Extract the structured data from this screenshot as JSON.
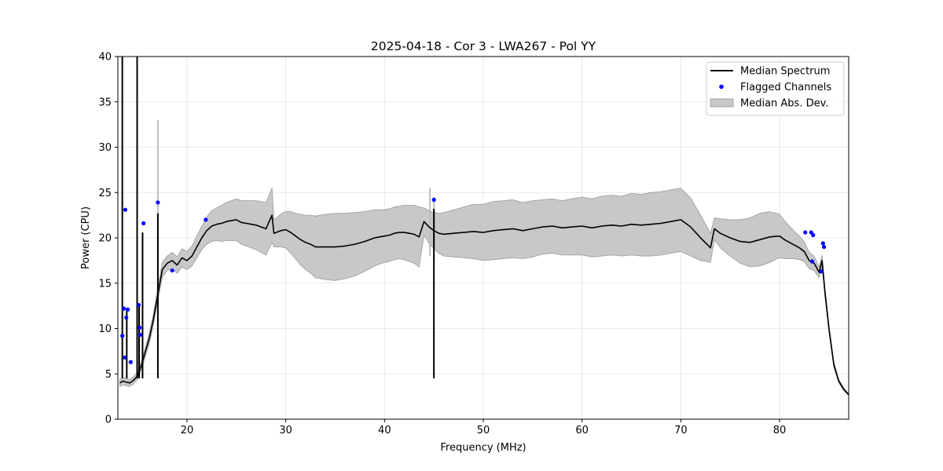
{
  "chart_data": {
    "type": "line",
    "title": "2025-04-18 - Cor 3 - LWA267 - Pol YY",
    "xlabel": "Frequency (MHz)",
    "ylabel": "Power (CPU)",
    "xlim": [
      13,
      87
    ],
    "ylim": [
      0,
      40
    ],
    "xticks": [
      20,
      30,
      40,
      50,
      60,
      70,
      80
    ],
    "yticks": [
      0,
      5,
      10,
      15,
      20,
      25,
      30,
      35,
      40
    ],
    "grid": true,
    "legend_position": "top-right",
    "legend": [
      {
        "label": "Median Spectrum",
        "kind": "line",
        "color": "#000000"
      },
      {
        "label": "Flagged Channels",
        "kind": "marker",
        "color": "#0000ff"
      },
      {
        "label": "Median Abs. Dev.",
        "kind": "band",
        "color": "#c8c8c8"
      }
    ],
    "median_spectrum": {
      "name": "Median Spectrum",
      "x": [
        13.2,
        13.5,
        13.8,
        14.2,
        14.6,
        15.0,
        15.4,
        15.8,
        16.2,
        16.6,
        17.0,
        17.5,
        18.0,
        18.5,
        19.0,
        19.5,
        20.0,
        20.5,
        21.0,
        21.5,
        22.0,
        22.5,
        23.0,
        23.5,
        24.0,
        24.5,
        25.0,
        25.5,
        26.0,
        26.5,
        27.0,
        27.5,
        28.0,
        28.6,
        28.8,
        29.5,
        30.0,
        30.5,
        31.0,
        31.5,
        32.0,
        32.5,
        33.0,
        34.0,
        35.0,
        36.0,
        37.0,
        38.0,
        38.5,
        39.0,
        39.5,
        40.0,
        40.5,
        41.0,
        41.5,
        42.0,
        42.5,
        43.0,
        43.5,
        44.0,
        44.5,
        45.0,
        45.5,
        46.0,
        47.0,
        48.0,
        49.0,
        50.0,
        51.0,
        52.0,
        53.0,
        54.0,
        55.0,
        56.0,
        57.0,
        58.0,
        59.0,
        60.0,
        61.0,
        62.0,
        63.0,
        64.0,
        65.0,
        66.0,
        67.0,
        68.0,
        69.0,
        70.0,
        71.0,
        72.0,
        73.0,
        73.4,
        74.0,
        75.0,
        76.0,
        77.0,
        78.0,
        79.0,
        80.0,
        80.5,
        81.0,
        81.5,
        82.0,
        82.5,
        83.0,
        83.5,
        84.0,
        84.3,
        84.6,
        85.0,
        85.5,
        86.0,
        86.5,
        87.0
      ],
      "y": [
        4.0,
        4.2,
        4.1,
        4.0,
        4.3,
        4.8,
        6.0,
        7.5,
        9.0,
        11.0,
        13.5,
        16.5,
        17.2,
        17.5,
        17.0,
        17.8,
        17.5,
        18.0,
        19.0,
        20.0,
        20.8,
        21.3,
        21.5,
        21.6,
        21.8,
        21.9,
        22.0,
        21.7,
        21.6,
        21.5,
        21.4,
        21.2,
        21.0,
        22.5,
        20.5,
        20.8,
        20.9,
        20.6,
        20.2,
        19.8,
        19.5,
        19.3,
        19.0,
        19.0,
        19.0,
        19.1,
        19.3,
        19.6,
        19.8,
        20.0,
        20.1,
        20.2,
        20.3,
        20.5,
        20.6,
        20.6,
        20.5,
        20.4,
        20.1,
        21.8,
        21.2,
        20.8,
        20.5,
        20.4,
        20.5,
        20.6,
        20.7,
        20.6,
        20.8,
        20.9,
        21.0,
        20.8,
        21.0,
        21.2,
        21.3,
        21.1,
        21.2,
        21.3,
        21.1,
        21.3,
        21.4,
        21.3,
        21.5,
        21.4,
        21.5,
        21.6,
        21.8,
        22.0,
        21.2,
        20.0,
        18.9,
        21.0,
        20.5,
        20.0,
        19.6,
        19.5,
        19.8,
        20.1,
        20.2,
        19.8,
        19.5,
        19.2,
        18.9,
        18.5,
        17.5,
        17.2,
        16.2,
        17.5,
        14.0,
        10.0,
        6.0,
        4.2,
        3.3,
        2.7
      ],
      "mad_half_width": [
        0.4,
        0.4,
        0.4,
        0.4,
        0.4,
        0.4,
        0.5,
        0.5,
        0.6,
        0.6,
        0.7,
        0.8,
        0.8,
        0.9,
        0.9,
        1.0,
        1.0,
        1.1,
        1.2,
        1.3,
        1.5,
        1.7,
        1.8,
        2.0,
        2.1,
        2.2,
        2.3,
        2.4,
        2.5,
        2.6,
        2.7,
        2.8,
        2.9,
        3.0,
        1.5,
        1.8,
        2.0,
        2.3,
        2.5,
        2.8,
        3.0,
        3.2,
        3.4,
        3.6,
        3.7,
        3.6,
        3.5,
        3.3,
        3.2,
        3.1,
        3.0,
        2.9,
        2.9,
        2.9,
        2.9,
        3.0,
        3.1,
        3.2,
        3.3,
        1.5,
        1.8,
        2.0,
        2.2,
        2.4,
        2.6,
        2.8,
        3.0,
        3.1,
        3.2,
        3.2,
        3.2,
        3.1,
        3.1,
        3.0,
        3.0,
        3.0,
        3.1,
        3.2,
        3.2,
        3.3,
        3.3,
        3.3,
        3.4,
        3.4,
        3.5,
        3.5,
        3.5,
        3.5,
        3.2,
        2.5,
        1.6,
        1.2,
        1.6,
        2.0,
        2.4,
        2.7,
        2.9,
        2.8,
        2.4,
        2.1,
        1.8,
        1.5,
        1.3,
        1.1,
        0.9,
        0.8,
        0.6,
        0.6,
        0.5,
        0.4,
        0.3,
        0.2,
        0.15,
        0.1
      ]
    },
    "spikes": [
      {
        "x": 13.45,
        "y": 40
      },
      {
        "x": 13.9,
        "y": 12.0
      },
      {
        "x": 14.95,
        "y": 40
      },
      {
        "x": 15.15,
        "y": 12.5
      },
      {
        "x": 15.5,
        "y": 20.6
      },
      {
        "x": 17.05,
        "y": 22.7
      },
      {
        "x": 45.0,
        "y": 23.2
      }
    ],
    "spike_band": [
      {
        "x": 17.05,
        "low": 13.0,
        "high": 33.0
      },
      {
        "x": 44.6,
        "low": 18.0,
        "high": 25.5
      },
      {
        "x": 45.0,
        "low": 17.5,
        "high": 24.5
      }
    ],
    "flagged_channels": {
      "name": "Flagged Channels",
      "x": [
        13.45,
        13.6,
        13.7,
        13.75,
        13.85,
        14.0,
        14.3,
        15.1,
        15.2,
        15.25,
        15.6,
        17.05,
        18.5,
        21.9,
        45.0,
        82.6,
        83.2,
        83.3,
        83.4,
        84.2,
        84.4,
        84.5
      ],
      "y": [
        9.2,
        12.2,
        6.8,
        23.1,
        11.2,
        12.1,
        6.3,
        12.6,
        10.1,
        9.3,
        21.6,
        23.9,
        16.4,
        22.0,
        24.2,
        20.6,
        20.6,
        17.4,
        20.3,
        16.3,
        19.4,
        19.0
      ]
    }
  }
}
